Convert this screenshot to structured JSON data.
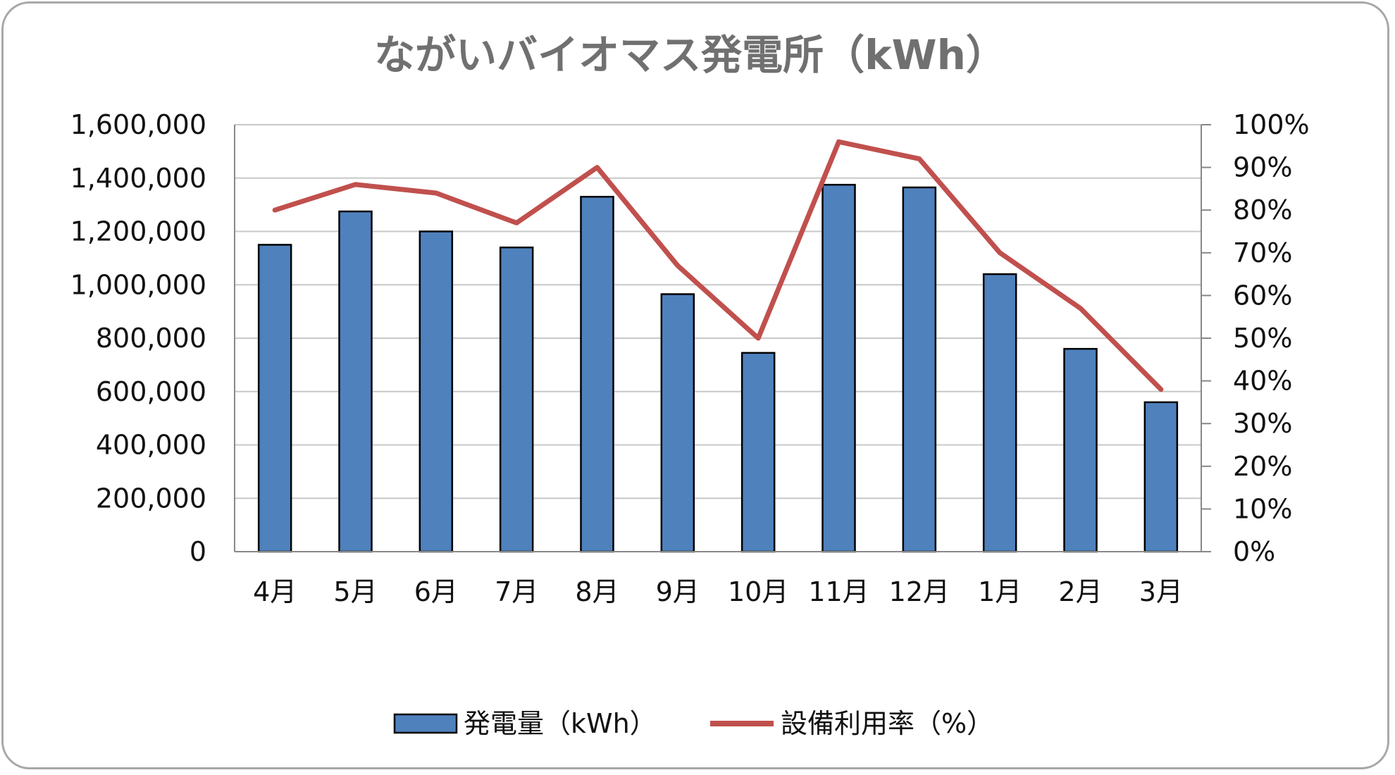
{
  "chart_data": {
    "type": "bar+line",
    "title": "ながいバイオマス発電所（kWh）",
    "categories": [
      "4月",
      "5月",
      "6月",
      "7月",
      "8月",
      "9月",
      "10月",
      "11月",
      "12月",
      "1月",
      "2月",
      "3月"
    ],
    "series": [
      {
        "name": "発電量（kWh）",
        "type": "bar",
        "axis": "left",
        "color": "#4f81bd",
        "values": [
          1150000,
          1275000,
          1200000,
          1140000,
          1330000,
          965000,
          745000,
          1375000,
          1365000,
          1040000,
          760000,
          560000
        ]
      },
      {
        "name": "設備利用率（%）",
        "type": "line",
        "axis": "right",
        "color": "#c0504d",
        "values": [
          80,
          86,
          84,
          77,
          90,
          67,
          50,
          96,
          92,
          70,
          57,
          38
        ]
      }
    ],
    "y_left": {
      "min": 0,
      "max": 1600000,
      "ticks": [
        "0",
        "200,000",
        "400,000",
        "600,000",
        "800,000",
        "1,000,000",
        "1,200,000",
        "1,400,000",
        "1,600,000"
      ]
    },
    "y_right": {
      "min": 0,
      "max": 100,
      "ticks": [
        "0%",
        "10%",
        "20%",
        "30%",
        "40%",
        "50%",
        "60%",
        "70%",
        "80%",
        "90%",
        "100%"
      ]
    },
    "grid": true,
    "legend_position": "bottom"
  }
}
